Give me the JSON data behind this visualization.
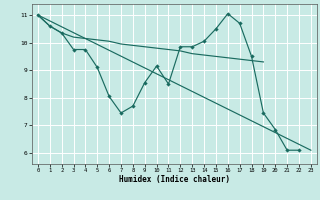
{
  "xlabel": "Humidex (Indice chaleur)",
  "bg_color": "#c8eae5",
  "line_color": "#1a6b60",
  "grid_color": "#b0d8d2",
  "ylim": [
    5.6,
    11.4
  ],
  "xlim": [
    -0.5,
    23.5
  ],
  "yticks": [
    6,
    7,
    8,
    9,
    10,
    11
  ],
  "xticks": [
    0,
    1,
    2,
    3,
    4,
    5,
    6,
    7,
    8,
    9,
    10,
    11,
    12,
    13,
    14,
    15,
    16,
    17,
    18,
    19,
    20,
    21,
    22,
    23
  ],
  "line1_x": [
    0,
    1,
    2,
    3,
    4,
    5,
    6,
    7,
    8,
    9,
    10,
    11,
    12,
    13,
    14,
    15,
    16,
    17,
    18,
    19,
    20,
    21,
    22
  ],
  "line1_y": [
    11.0,
    10.6,
    10.35,
    9.75,
    9.75,
    9.1,
    8.05,
    7.45,
    7.7,
    8.55,
    9.15,
    8.5,
    9.85,
    9.85,
    10.05,
    10.5,
    11.05,
    10.7,
    9.5,
    7.45,
    6.85,
    6.1,
    6.1
  ],
  "line2_x": [
    0,
    1,
    2,
    3,
    4,
    5,
    6,
    7,
    8,
    9,
    10,
    11,
    12,
    13,
    14,
    15,
    16,
    17,
    18,
    19
  ],
  "line2_y": [
    11.0,
    10.6,
    10.35,
    10.2,
    10.15,
    10.1,
    10.05,
    9.95,
    9.9,
    9.85,
    9.8,
    9.75,
    9.7,
    9.6,
    9.55,
    9.5,
    9.45,
    9.4,
    9.35,
    9.3
  ],
  "line3_x": [
    0,
    23
  ],
  "line3_y": [
    11.0,
    6.1
  ]
}
